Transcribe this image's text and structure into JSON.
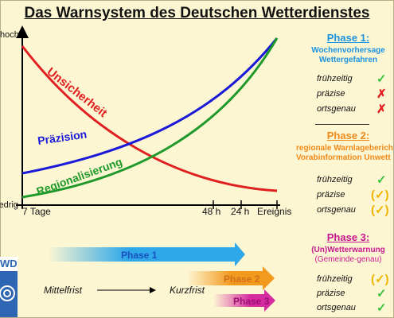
{
  "title": "Das Warnsystem des Deutschen Wetterdienstes",
  "y_axis": {
    "top": "hoch",
    "bottom": "niedrig"
  },
  "x_axis": {
    "ticks": [
      "7 Tage",
      "48 h",
      "24 h",
      "Ereignis"
    ]
  },
  "curves": {
    "uncertainty": {
      "label": "Unsicherheit",
      "color": "#e02020"
    },
    "precision": {
      "label": "Präzision",
      "color": "#1a1ad8"
    },
    "regional": {
      "label": "Regionalisierung",
      "color": "#1f9a2a"
    }
  },
  "phase_bars": [
    {
      "label": "Phase 1",
      "color": "#2ea8e8"
    },
    {
      "label": "Phase 2",
      "color": "#f39a1e"
    },
    {
      "label": "Phase 3",
      "color": "#d62aa0"
    }
  ],
  "timeline": {
    "left": "Mittelfrist",
    "right": "Kurzfrist"
  },
  "logo": {
    "text": "WD"
  },
  "phases": [
    {
      "title": "Phase 1:",
      "color": "#1b93e0",
      "subtitle": [
        "Wochenvorhersage",
        "Wettergefahren"
      ],
      "criteria": [
        {
          "label": "frühzeitig",
          "mark": "✓",
          "mark_color": "#3cc23c"
        },
        {
          "label": "präzise",
          "mark": "✗",
          "mark_color": "#e02020"
        },
        {
          "label": "ortsgenau",
          "mark": "✗",
          "mark_color": "#e02020"
        }
      ]
    },
    {
      "title": "Phase 2:",
      "color": "#f08a1a",
      "subtitle": [
        "regionale Warnlageberich",
        "Vorabinformation Unwett"
      ],
      "criteria": [
        {
          "label": "frühzeitig",
          "mark": "✓",
          "mark_color": "#3cc23c"
        },
        {
          "label": "präzise",
          "mark": "(✓)",
          "mark_color": "#f0b400"
        },
        {
          "label": "ortsgenau",
          "mark": "(✓)",
          "mark_color": "#f0b400"
        }
      ]
    },
    {
      "title": "Phase 3:",
      "color": "#c8188f",
      "subtitle": [
        "(Un)Wetterwarnung",
        "(Gemeinde-genau)"
      ],
      "criteria": [
        {
          "label": "frühzeitig",
          "mark": "(✓)",
          "mark_color": "#f0b400"
        },
        {
          "label": "präzise",
          "mark": "✓",
          "mark_color": "#3cc23c"
        },
        {
          "label": "ortsgenau",
          "mark": "✓",
          "mark_color": "#3cc23c"
        }
      ]
    }
  ]
}
